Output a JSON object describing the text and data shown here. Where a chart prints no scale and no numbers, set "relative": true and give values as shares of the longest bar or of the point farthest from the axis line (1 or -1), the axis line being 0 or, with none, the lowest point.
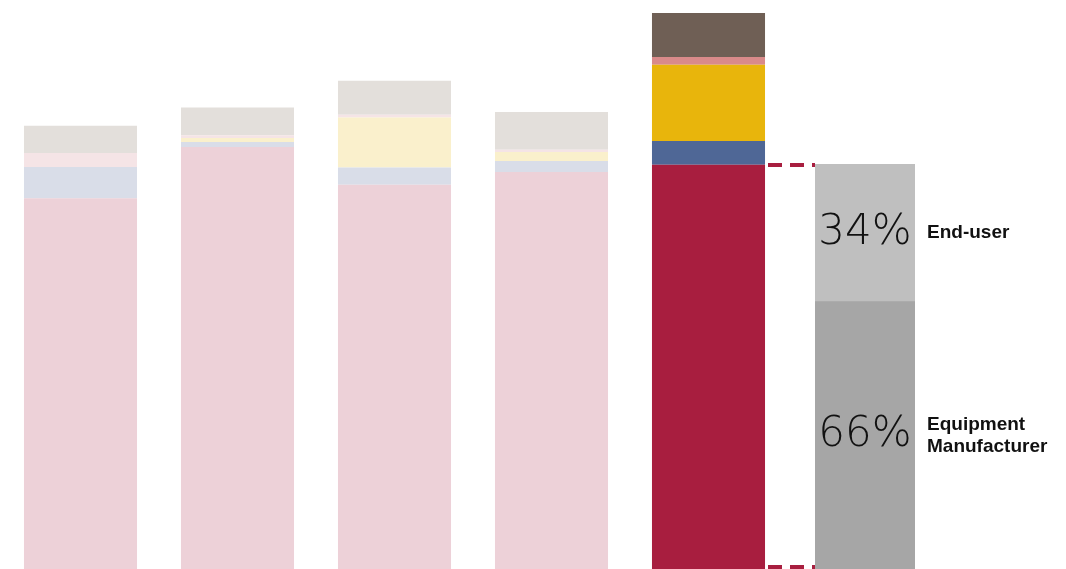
{
  "chart_data": [
    {
      "type": "bar",
      "stacked": true,
      "relative": true,
      "categories": [
        null,
        null,
        null,
        null,
        null
      ],
      "series": [
        {
          "colors": [
            "#edd1d8",
            "#edd1d8",
            "#edd1d8",
            "#edd1d8",
            "#a81e3f"
          ],
          "values": [
            0.667,
            0.759,
            0.691,
            0.714,
            0.727
          ]
        },
        {
          "colors": [
            "#d9dde8",
            "#d9dde8",
            "#d9dde8",
            "#d9dde8",
            "#4f6796"
          ],
          "values": [
            0.056,
            0.009,
            0.031,
            0.02,
            0.043
          ]
        },
        {
          "colors": [
            "#faf0cc",
            "#faf0cc",
            "#faf0cc",
            "#faf0cc",
            "#e8b50c"
          ],
          "values": [
            null,
            0.007,
            0.09,
            0.016,
            0.137
          ]
        },
        {
          "colors": [
            "#f5e4e6",
            "#f5e4e6",
            "#f5e4e6",
            "#f5e4e6",
            "#d98a8a"
          ],
          "values": [
            0.025,
            0.005,
            0.005,
            0.004,
            0.014
          ]
        },
        {
          "colors": [
            "#e3dfdb",
            "#e3dfdb",
            "#e3dfdb",
            "#e3dfdb",
            "#6f5f55"
          ],
          "values": [
            0.049,
            0.05,
            0.061,
            0.068,
            0.079
          ]
        }
      ]
    },
    {
      "type": "bar",
      "stacked": true,
      "categories": [
        null
      ],
      "series": [
        {
          "color": "#a6a6a6",
          "values": [
            66
          ],
          "value_labels": [
            "66%"
          ]
        },
        {
          "color": "#bfbfbf",
          "values": [
            34
          ],
          "value_labels": [
            "34%"
          ]
        }
      ],
      "annotations": [
        "Equipment\nManufacturer",
        "End-user"
      ]
    }
  ]
}
